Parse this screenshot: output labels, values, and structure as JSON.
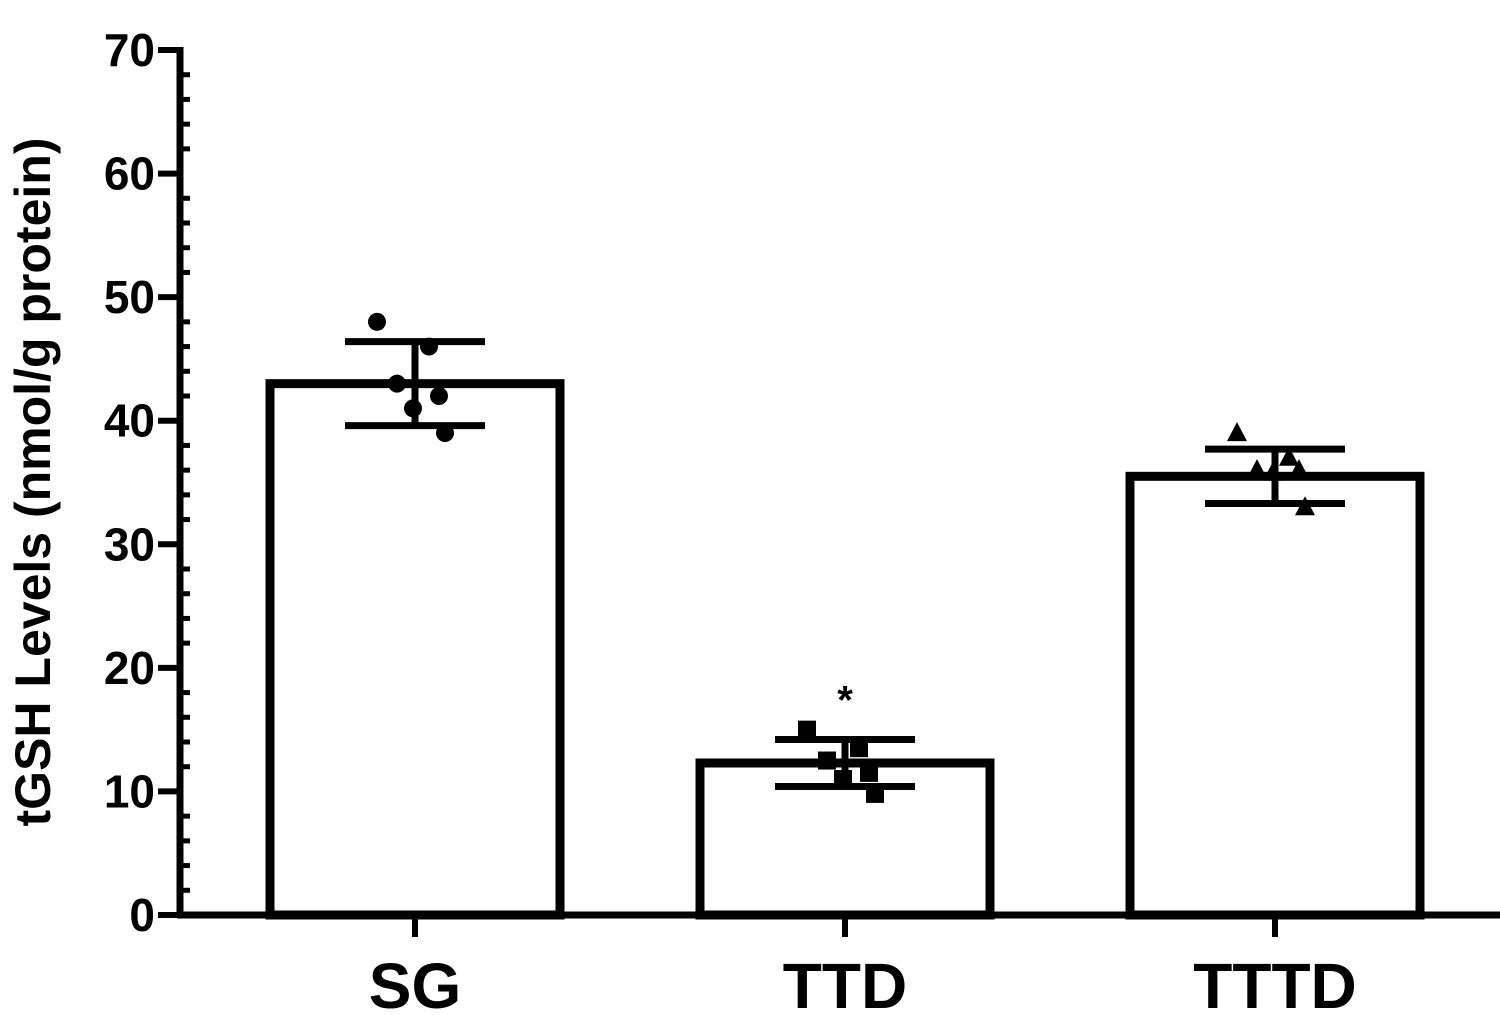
{
  "chart_data": {
    "type": "bar",
    "title": "",
    "xlabel": "",
    "ylabel": "tGSH Levels (nmol/g protein)",
    "categories": [
      "SG",
      "TTD",
      "TTTD"
    ],
    "values": [
      43,
      12.3,
      35.5
    ],
    "error_sd": [
      3.4,
      1.9,
      2.2
    ],
    "points": [
      [
        48,
        46,
        43,
        42,
        41,
        39
      ],
      [
        15,
        13.5,
        12.5,
        11.5,
        11,
        9.8
      ],
      [
        39,
        37,
        36,
        36,
        35.8,
        33
      ]
    ],
    "markers": [
      "circle",
      "square",
      "triangle"
    ],
    "annotations": [
      {
        "category": "TTD",
        "text": "*"
      }
    ],
    "ylim": [
      0,
      70
    ],
    "yticks": [
      0,
      10,
      20,
      30,
      40,
      50,
      60,
      70
    ],
    "yticks_labels": [
      "0",
      "10",
      "20",
      "30",
      "40",
      "50",
      "60",
      "70"
    ],
    "minor_ticks_per_major": 5,
    "grid": false,
    "legend": "none",
    "colors": {
      "bar_fill": "#ffffff",
      "stroke": "#000000",
      "points": "#000000"
    }
  }
}
